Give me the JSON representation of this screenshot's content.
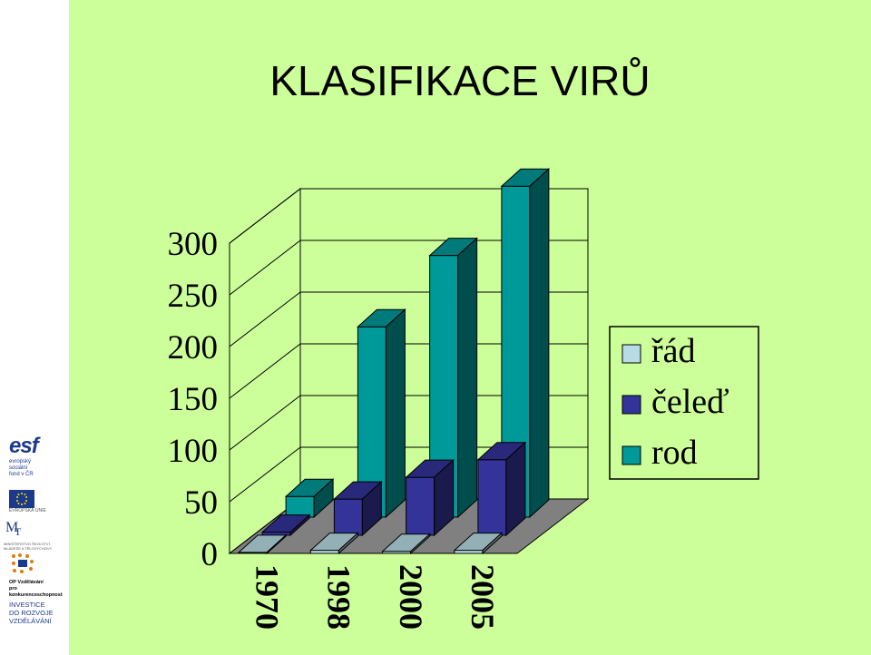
{
  "title": "KLASIFIKACE VIRŮ",
  "chart_data": {
    "type": "bar",
    "categories": [
      "1970",
      "1998",
      "2000",
      "2005"
    ],
    "series": [
      {
        "name": "řád",
        "values": [
          1,
          3,
          2,
          3
        ],
        "color": "#b8dce4"
      },
      {
        "name": "čeleď",
        "values": [
          3,
          35,
          56,
          73
        ],
        "color": "#33339a"
      },
      {
        "name": "rod",
        "values": [
          20,
          184,
          253,
          320
        ],
        "color": "#009999"
      }
    ],
    "yticks": [
      "0",
      "50",
      "100",
      "150",
      "200",
      "250",
      "300"
    ],
    "ylim": [
      0,
      300
    ],
    "grid": true,
    "legend": "right",
    "style": "3d-clustered"
  },
  "sidebar": {
    "esf": "esf",
    "esf_lines": [
      "evropský",
      "sociální",
      "fond v ČR"
    ],
    "eu": "EVROPSKÁ UNIE",
    "msmt": "MINISTERSTVO ŠKOLSTVÍ, MLÁDEŽE A TĚLOVÝCHOVY",
    "op_lines": [
      "OP Vzdělávání",
      "pro konkurenceschopnost"
    ],
    "invest_lines": [
      "INVESTICE",
      "DO ROZVOJE",
      "VZDĚLÁVÁNÍ"
    ]
  }
}
